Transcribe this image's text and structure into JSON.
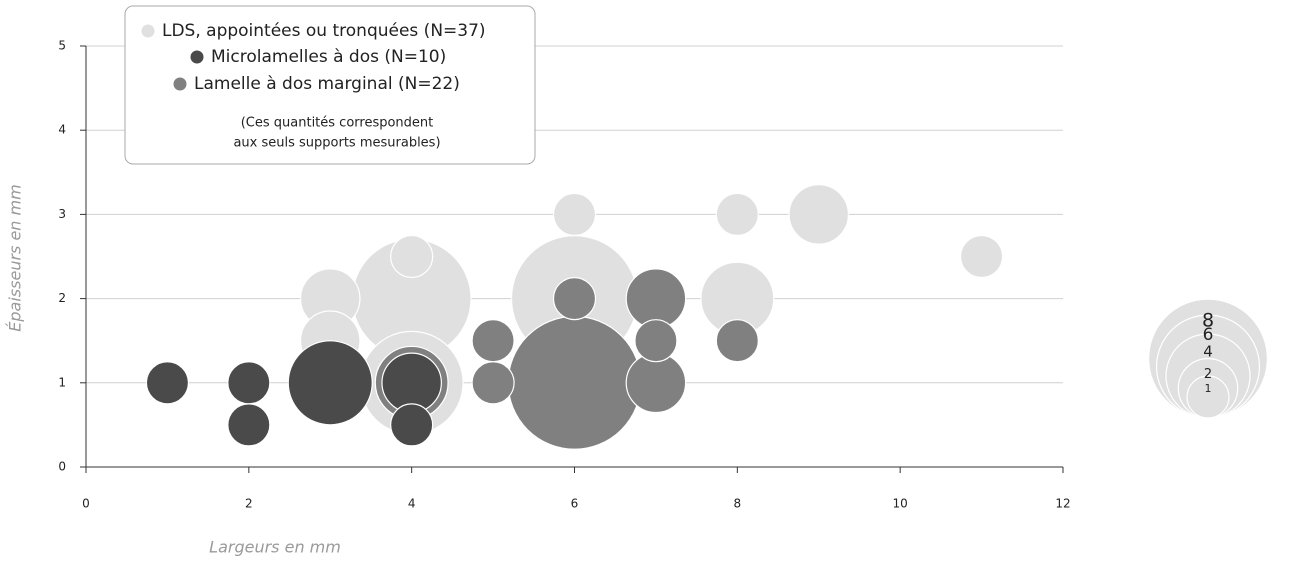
{
  "chart_data": {
    "type": "bubble",
    "x_label": "Largeurs en mm",
    "y_label": "Épaisseurs en mm",
    "xlim": [
      0,
      12
    ],
    "xticks": [
      0,
      2,
      4,
      6,
      8,
      10,
      12
    ],
    "ylim": [
      0,
      5
    ],
    "yticks": [
      0,
      1,
      2,
      3,
      4,
      5
    ],
    "grid": true,
    "legend_note": [
      "(Ces quantités correspondent",
      "aux seuls supports mesurables)"
    ],
    "series": [
      {
        "name": "LDS, appointées ou tronquées (N=37)",
        "color": "#e0e0e0",
        "x": [
          3,
          3,
          4,
          4,
          4,
          6,
          6,
          6,
          8,
          8,
          9,
          11
        ],
        "values": [
          2,
          1.5,
          2,
          2.5,
          1,
          3,
          2,
          1.5,
          3,
          2,
          3,
          2.5
        ],
        "sizes": [
          2,
          2,
          8,
          1,
          6,
          1,
          9,
          1,
          1,
          3,
          2,
          1
        ]
      },
      {
        "name": "Lamelle à dos marginal (N=22)",
        "color": "#808080",
        "x": [
          4,
          5,
          5,
          6,
          6,
          7,
          7,
          7,
          8
        ],
        "values": [
          1,
          1.5,
          1,
          2,
          1,
          2,
          1.5,
          1,
          1.5
        ],
        "sizes": [
          3,
          1,
          1,
          1,
          10,
          2,
          1,
          2,
          1
        ]
      },
      {
        "name": "Microlamelles à dos (N=10)",
        "color": "#4a4a4a",
        "x": [
          1,
          2,
          2,
          3,
          4,
          4
        ],
        "values": [
          1,
          1,
          0.5,
          1,
          1,
          0.5
        ],
        "sizes": [
          1,
          1,
          1,
          4,
          2,
          1
        ]
      }
    ],
    "size_key": {
      "color": "#e0e0e0",
      "values": [
        1,
        2,
        4,
        6,
        8
      ]
    }
  }
}
